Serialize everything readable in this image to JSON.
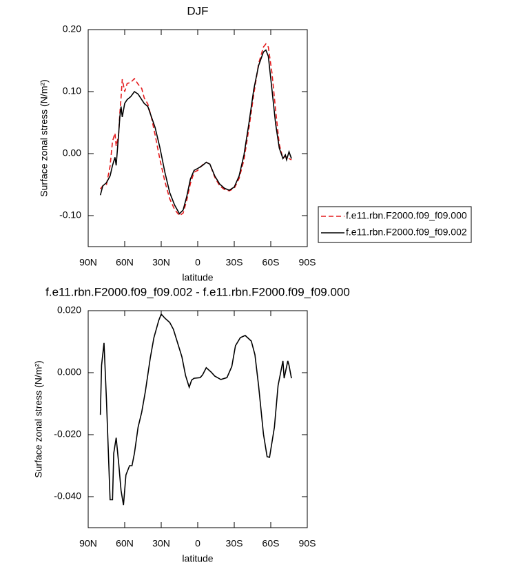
{
  "chart_data": [
    {
      "type": "line",
      "title": "DJF",
      "xlabel": "latitude",
      "ylabel": "Surface zonal stress (N/m²)",
      "x": [
        80,
        78,
        75,
        72,
        70,
        68,
        67,
        65,
        64,
        63,
        62,
        60,
        58,
        55,
        52,
        49,
        46,
        44,
        41,
        38,
        35,
        31,
        27,
        23,
        19,
        15,
        12,
        9,
        6,
        3,
        0,
        -4,
        -7,
        -10,
        -14,
        -18,
        -22,
        -26,
        -30,
        -34,
        -38,
        -42,
        -46,
        -50,
        -54,
        -56,
        -58,
        -61,
        -64,
        -67,
        -70,
        -72,
        -73,
        -75,
        -77
      ],
      "series": [
        {
          "name": "f.e11.rbn.F2000.f09_f09.000",
          "color": "#e41a1c",
          "dash": true,
          "values": [
            -0.057,
            -0.052,
            -0.05,
            -0.02,
            0.02,
            0.033,
            0.012,
            0.03,
            0.065,
            0.09,
            0.12,
            0.1,
            0.113,
            0.115,
            0.121,
            0.112,
            0.105,
            0.09,
            0.08,
            0.058,
            0.03,
            -0.01,
            -0.045,
            -0.073,
            -0.09,
            -0.1,
            -0.096,
            -0.075,
            -0.048,
            -0.03,
            -0.027,
            -0.018,
            -0.014,
            -0.017,
            -0.038,
            -0.052,
            -0.058,
            -0.06,
            -0.056,
            -0.04,
            -0.01,
            0.04,
            0.095,
            0.145,
            0.172,
            0.177,
            0.172,
            0.13,
            0.07,
            0.015,
            -0.008,
            -0.004,
            -0.006,
            -0.008,
            -0.01
          ]
        },
        {
          "name": "f.e11.rbn.F2000.f09_f09.002",
          "color": "#000000",
          "dash": false,
          "values": [
            -0.067,
            -0.052,
            -0.047,
            -0.036,
            -0.019,
            -0.006,
            -0.019,
            0.031,
            0.059,
            0.076,
            0.059,
            0.081,
            0.087,
            0.092,
            0.1,
            0.096,
            0.087,
            0.081,
            0.076,
            0.059,
            0.042,
            0.009,
            -0.03,
            -0.063,
            -0.083,
            -0.097,
            -0.091,
            -0.069,
            -0.041,
            -0.027,
            -0.024,
            -0.019,
            -0.014,
            -0.017,
            -0.036,
            -0.049,
            -0.056,
            -0.059,
            -0.054,
            -0.036,
            -0.002,
            0.048,
            0.103,
            0.142,
            0.164,
            0.167,
            0.157,
            0.103,
            0.048,
            0.009,
            -0.008,
            -0.002,
            -0.01,
            0.003,
            -0.008
          ]
        }
      ],
      "xlim": [
        90,
        -90
      ],
      "xticks": [
        {
          "value": 90,
          "label": "90N"
        },
        {
          "value": 60,
          "label": "60N"
        },
        {
          "value": 30,
          "label": "30N"
        },
        0,
        {
          "value": -30,
          "label": "30S"
        },
        {
          "value": -60,
          "label": "60S"
        },
        {
          "value": -90,
          "label": "90S"
        }
      ],
      "ylim": [
        -0.15,
        0.2
      ],
      "yticks": [
        {
          "value": 0.2,
          "label": "0.20"
        },
        {
          "value": 0.1,
          "label": "0.10"
        },
        {
          "value": 0,
          "label": "0.00"
        },
        {
          "value": -0.1,
          "label": "-0.10"
        }
      ],
      "legend": "right"
    },
    {
      "type": "line",
      "title": "f.e11.rbn.F2000.f09_f09.002 - f.e11.rbn.F2000.f09_f09.000",
      "xlabel": "latitude",
      "ylabel": "Surface zonal stress (N/m²)",
      "x": [
        80,
        79,
        77,
        75,
        72,
        70,
        69,
        67,
        65,
        63,
        61,
        59,
        56,
        54,
        52,
        49,
        46,
        43,
        39,
        36,
        32,
        30,
        27,
        23,
        20,
        17,
        13,
        10,
        7,
        5,
        3,
        -2,
        -4,
        -7,
        -11,
        -14,
        -19,
        -24,
        -28,
        -31,
        -35,
        -39,
        -44,
        -47,
        -50,
        -54,
        -57,
        -59,
        -63,
        -66,
        -70,
        -71,
        -74,
        -75,
        -77
      ],
      "values": [
        -0.0136,
        0.0024,
        0.0096,
        -0.0087,
        -0.041,
        -0.041,
        -0.026,
        -0.021,
        -0.029,
        -0.038,
        -0.0427,
        -0.033,
        -0.03,
        -0.03,
        -0.026,
        -0.0176,
        -0.0127,
        -0.006,
        0.0047,
        0.0113,
        0.0169,
        0.0189,
        0.0176,
        0.0162,
        0.014,
        0.0102,
        0.0051,
        -0.0009,
        -0.0047,
        -0.0024,
        -0.0018,
        -0.0016,
        -0.0007,
        0.0016,
        0.0002,
        -0.0011,
        -0.0022,
        -0.0016,
        0.002,
        0.0087,
        0.0113,
        0.012,
        0.0102,
        0.0058,
        -0.0042,
        -0.0198,
        -0.0271,
        -0.0273,
        -0.0176,
        -0.0042,
        0.0038,
        -0.0018,
        0.0038,
        0.0024,
        -0.0018
      ],
      "color": "#000000",
      "xlim": [
        90,
        -90
      ],
      "xticks": [
        {
          "value": 90,
          "label": "90N"
        },
        {
          "value": 60,
          "label": "60N"
        },
        {
          "value": 30,
          "label": "30N"
        },
        0,
        {
          "value": -30,
          "label": "30S"
        },
        {
          "value": -60,
          "label": "60S"
        },
        {
          "value": -90,
          "label": "90S"
        }
      ],
      "ylim": [
        -0.05,
        0.02
      ],
      "yticks": [
        {
          "value": 0.02,
          "label": "0.020"
        },
        {
          "value": 0,
          "label": "0.000"
        },
        {
          "value": -0.02,
          "label": "-0.020"
        },
        {
          "value": -0.04,
          "label": "-0.040"
        }
      ]
    }
  ]
}
